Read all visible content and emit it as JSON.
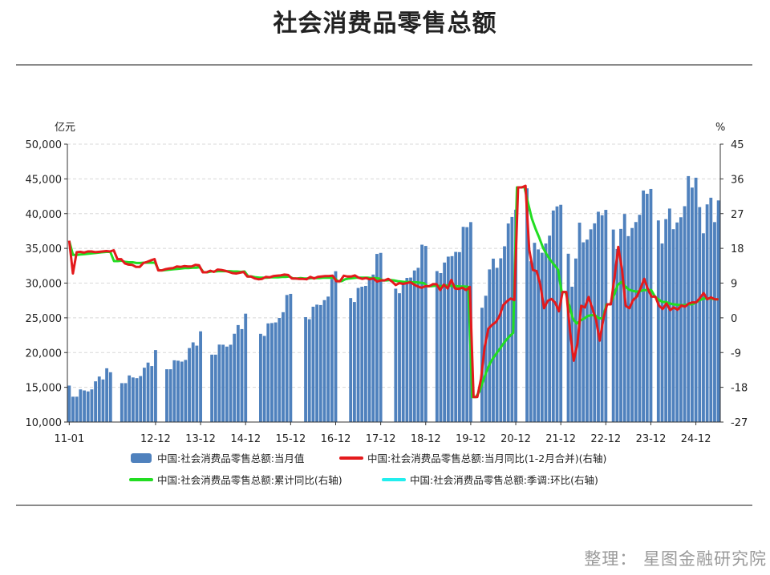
{
  "title": "社会消费品零售总额",
  "credit": "整理：  星图金融研究院",
  "chart_data": {
    "type": "bar+line",
    "left_axis": {
      "unit": "亿元",
      "ylim": [
        10000,
        50000
      ],
      "ticks": [
        "10,000",
        "15,000",
        "20,000",
        "25,000",
        "30,000",
        "35,000",
        "40,000",
        "45,000",
        "50,000"
      ]
    },
    "right_axis": {
      "unit": "%",
      "ylim": [
        -27,
        45
      ],
      "ticks": [
        "-27",
        "-18",
        "-9",
        "0",
        "9",
        "18",
        "27",
        "36",
        "45"
      ]
    },
    "x_tick_labels": [
      "11-01",
      "12-12",
      "13-12",
      "14-12",
      "15-12",
      "16-12",
      "17-12",
      "18-12",
      "19-12",
      "20-12",
      "21-12",
      "22-12",
      "23-12",
      "24-12"
    ],
    "legend": [
      {
        "name": "中国:社会消费品零售总额:当月值",
        "color": "#4f81bd",
        "kind": "bar"
      },
      {
        "name": "中国:社会消费品零售总额:当月同比(1-2月合并)(右轴)",
        "color": "#e41a1c",
        "kind": "line"
      },
      {
        "name": "中国:社会消费品零售总额:累计同比(右轴)",
        "color": "#22dd22",
        "kind": "line"
      },
      {
        "name": "中国:社会消费品零售总额:季调:环比(右轴)",
        "color": "#22eeee",
        "kind": "line"
      }
    ],
    "years": [
      {
        "label": "2011",
        "values": [
          15250,
          13590,
          13650,
          13650,
          14700,
          14550,
          14410,
          14700,
          15860,
          16550,
          16130,
          17740,
          17170
        ]
      },
      {
        "label": "2012",
        "values": [
          15600,
          15600,
          16710,
          16420,
          16320,
          16620,
          17820,
          18560,
          18060,
          20360
        ]
      },
      {
        "label": "2013",
        "values": [
          17600,
          17600,
          18890,
          18830,
          18700,
          18940,
          20650,
          21470,
          21000,
          23060
        ]
      },
      {
        "label": "2014",
        "values": [
          19700,
          19700,
          21150,
          21130,
          20860,
          21130,
          22710,
          23960,
          23380,
          25600
        ]
      },
      {
        "label": "2015",
        "values": [
          22700,
          22400,
          24200,
          24250,
          24340,
          24980,
          25810,
          28290,
          28450
        ]
      },
      {
        "label": "2016",
        "values": [
          25100,
          24800,
          26600,
          26900,
          26840,
          27550,
          28060,
          30600,
          31710
        ]
      },
      {
        "label": "2017",
        "values": [
          27850,
          27280,
          29300,
          29480,
          29600,
          30750,
          31230,
          34200,
          34350
        ]
      },
      {
        "label": "2018",
        "values": [
          29200,
          28540,
          30260,
          30750,
          30800,
          31820,
          32200,
          35530,
          35350
        ]
      },
      {
        "label": "2019",
        "values": [
          31730,
          31440,
          32960,
          33810,
          33880,
          34490,
          34460,
          38100,
          38050,
          38780
        ]
      },
      {
        "label": "2020",
        "values": [
          26450,
          28180,
          31970,
          33520,
          32200,
          33570,
          35300,
          38580,
          39520,
          40570
        ]
      },
      {
        "label": "2021",
        "values": [
          43640,
          33150,
          35800,
          34850,
          34370,
          35700,
          36830,
          40450,
          41040,
          41270
        ]
      },
      {
        "label": "2022",
        "values": [
          34230,
          29480,
          33540,
          38700,
          35870,
          36260,
          37740,
          38600,
          40270,
          39770,
          40540
        ]
      },
      {
        "label": "2023",
        "values": [
          37710,
          34910,
          37800,
          39950,
          36760,
          37930,
          38790,
          39830,
          43330,
          42860,
          43550
        ]
      },
      {
        "label": "2024",
        "values": [
          39020,
          35700,
          39210,
          40730,
          37760,
          38730,
          39480,
          41070,
          45400,
          43750,
          45170
        ]
      },
      {
        "label": "2025",
        "values": [
          40940,
          37170,
          41330,
          42290,
          38780,
          39670,
          41900
        ]
      }
    ],
    "monthly_yoy": [
      20,
      11.5,
      17,
      17.1,
      16.9,
      17.2,
      17.2,
      17,
      17.1,
      17.2,
      17.3,
      17.2,
      17.5,
      15.2,
      15.2,
      14.1,
      13.8,
      13.7,
      13.2,
      13.2,
      14.2,
      14.5,
      14.9,
      15.2,
      12.3,
      12.3,
      12.6,
      12.8,
      12.9,
      13.3,
      13.2,
      13.4,
      13.3,
      13.3,
      13.7,
      13.6,
      11.8,
      11.8,
      12.2,
      11.9,
      12.5,
      12.4,
      12.2,
      11.9,
      11.6,
      11.5,
      11.7,
      11.9,
      10.7,
      10.7,
      10.2,
      10,
      10.1,
      10.6,
      10.5,
      10.8,
      10.9,
      11,
      11.2,
      11.1,
      10.2,
      10.2,
      10.1,
      10.1,
      10,
      10.6,
      10.2,
      10.6,
      10.7,
      10.8,
      10.8,
      10.9,
      9.5,
      9.5,
      10.9,
      10.7,
      10.7,
      11,
      10.4,
      10.1,
      10.3,
      10,
      10.2,
      9.4,
      9.7,
      9.7,
      10.1,
      9.4,
      8.5,
      9,
      8.8,
      9,
      9.2,
      8.6,
      8.1,
      7.8,
      8.2,
      8.2,
      8.7,
      8.7,
      7.2,
      8.6,
      7.6,
      9.8,
      7.6,
      7.5,
      7.8,
      7.2,
      8,
      -20.5,
      -20.5,
      -15.8,
      -7.5,
      -2.8,
      -1.8,
      -1.1,
      0.5,
      3.3,
      4.3,
      5,
      4.6,
      33.8,
      33.8,
      34.2,
      17.7,
      12.4,
      12.1,
      8.5,
      2.5,
      4.4,
      4.9,
      3.9,
      1.7,
      6.7,
      6.7,
      -3.5,
      -11.1,
      -6.7,
      3.1,
      2.7,
      5.4,
      2.5,
      -0.5,
      -5.9,
      -0.2,
      3.5,
      3.5,
      10.6,
      18.4,
      12.7,
      3.1,
      2.5,
      4.6,
      5.5,
      7.6,
      10.1,
      7.4,
      5.5,
      5.5,
      3.1,
      2.3,
      3.7,
      2,
      2.7,
      2.1,
      3.2,
      2.9,
      3.7,
      4,
      4,
      5.1,
      6.4,
      4.8,
      5.3,
      4.8,
      4.8
    ],
    "cumulative_yoy": [
      19.9,
      16.3,
      16.3,
      16.4,
      16.5,
      16.6,
      16.7,
      16.8,
      16.9,
      17,
      17.1,
      17.1,
      14.7,
      14.7,
      14.8,
      14.5,
      14.4,
      14.4,
      14.2,
      14.2,
      14.3,
      14.3,
      14.3,
      14.3,
      12.3,
      12.3,
      12.4,
      12.5,
      12.6,
      12.7,
      12.8,
      12.9,
      12.9,
      13,
      13,
      13.1,
      11.8,
      11.8,
      12,
      12,
      12.1,
      12.1,
      12.1,
      12.1,
      12,
      12,
      11.9,
      12,
      10.7,
      10.7,
      10.5,
      10.4,
      10.4,
      10.4,
      10.5,
      10.5,
      10.5,
      10.6,
      10.6,
      10.7,
      10.2,
      10.2,
      10.3,
      10.2,
      10.2,
      10.3,
      10.3,
      10.3,
      10.4,
      10.4,
      10.4,
      10.4,
      9.5,
      9.5,
      10,
      10.2,
      10.3,
      10.4,
      10.4,
      10.4,
      10.4,
      10.3,
      10.3,
      10.2,
      9.7,
      9.7,
      9.8,
      9.7,
      9.5,
      9.4,
      9.3,
      9.3,
      9.2,
      9.2,
      9.1,
      9,
      8.2,
      8.2,
      8.3,
      8.3,
      8.1,
      8.4,
      8.3,
      8.2,
      8.2,
      8.1,
      8.1,
      8,
      -20.5,
      -20.5,
      -19,
      -16.2,
      -13.5,
      -11.4,
      -9.9,
      -8.6,
      -7.2,
      -5.9,
      -4.8,
      -3.9,
      33.8,
      33.8,
      33.9,
      29.6,
      25.7,
      23,
      20.7,
      18.1,
      16.4,
      14.9,
      13.7,
      12.5,
      6.7,
      6.7,
      3.3,
      -0.2,
      -1.5,
      -0.7,
      -0.2,
      0.5,
      0.7,
      0.6,
      -0.1,
      -0.2,
      3.5,
      3.5,
      5.8,
      8.5,
      9.3,
      8.2,
      7.3,
      7,
      6.8,
      6.9,
      7.2,
      7.2,
      7.2,
      5.5,
      4.7,
      4.1,
      4.1,
      3.7,
      3.5,
      3.4,
      3.3,
      3.3,
      3.5,
      3.5,
      4,
      4.6,
      5,
      5,
      5,
      4.8,
      4.8
    ]
  }
}
